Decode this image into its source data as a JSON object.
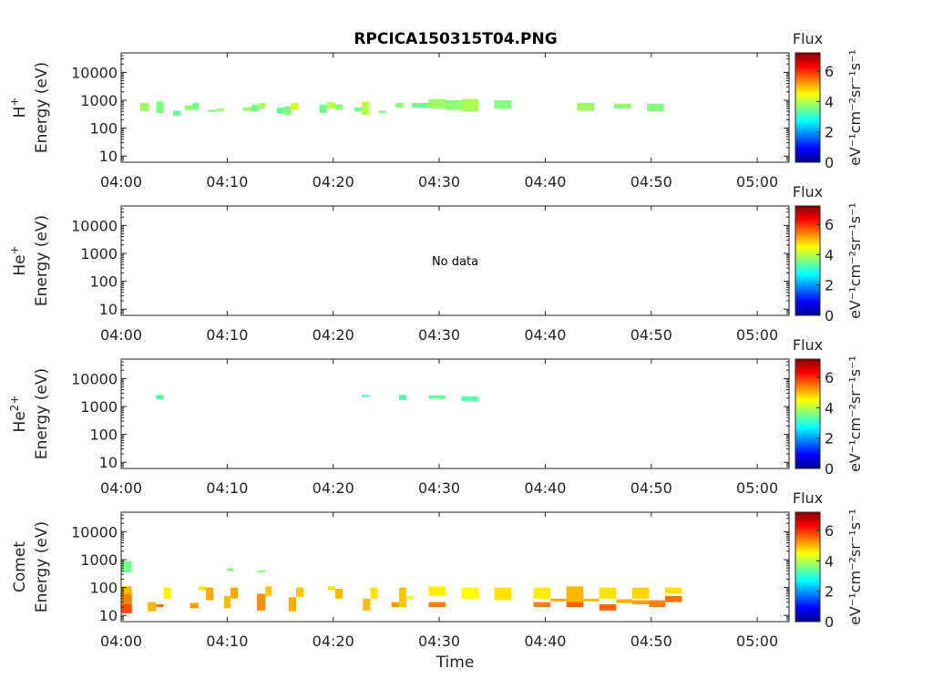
{
  "title": "RPCICA150315T04.PNG",
  "colors": {
    "axis": "#262626",
    "background": "#ffffff",
    "colormap": "jet"
  },
  "chart_data": [
    {
      "type": "heatmap",
      "species": "H",
      "species_sup": "+",
      "ylabel": "Energy (eV)",
      "x_range": [
        "04:00",
        "05:03"
      ],
      "y_scale": "log",
      "ylim": [
        6,
        50000
      ],
      "x_ticks": [
        "04:00",
        "04:10",
        "04:20",
        "04:30",
        "04:40",
        "04:50",
        "05:00"
      ],
      "y_ticks": [
        "10",
        "100",
        "1000",
        "10000"
      ],
      "no_data": "",
      "colorbar": {
        "title": "Flux",
        "label": "eV⁻¹cm⁻²sr⁻¹s⁻¹",
        "range": [
          0,
          7.2
        ],
        "ticks": [
          "0",
          "2",
          "4",
          "6"
        ]
      },
      "cells": [
        {
          "t0": 1.8,
          "t1": 2.6,
          "e0": 400,
          "e1": 800,
          "v": 3.8
        },
        {
          "t0": 3.3,
          "t1": 4.0,
          "e0": 350,
          "e1": 900,
          "v": 3.6
        },
        {
          "t0": 4.9,
          "t1": 5.6,
          "e0": 280,
          "e1": 420,
          "v": 3.4
        },
        {
          "t0": 6.0,
          "t1": 6.7,
          "e0": 450,
          "e1": 650,
          "v": 3.7
        },
        {
          "t0": 6.7,
          "t1": 7.3,
          "e0": 450,
          "e1": 800,
          "v": 3.5
        },
        {
          "t0": 8.2,
          "t1": 9.0,
          "e0": 380,
          "e1": 450,
          "v": 3.6
        },
        {
          "t0": 9.0,
          "t1": 9.7,
          "e0": 400,
          "e1": 500,
          "v": 3.8
        },
        {
          "t0": 11.5,
          "t1": 12.3,
          "e0": 420,
          "e1": 550,
          "v": 3.7
        },
        {
          "t0": 12.3,
          "t1": 13.0,
          "e0": 400,
          "e1": 700,
          "v": 3.5
        },
        {
          "t0": 13.0,
          "t1": 13.6,
          "e0": 500,
          "e1": 800,
          "v": 3.9
        },
        {
          "t0": 14.7,
          "t1": 15.4,
          "e0": 330,
          "e1": 550,
          "v": 3.4
        },
        {
          "t0": 15.4,
          "t1": 16.0,
          "e0": 300,
          "e1": 600,
          "v": 3.6
        },
        {
          "t0": 16.0,
          "t1": 16.7,
          "e0": 450,
          "e1": 800,
          "v": 4.2
        },
        {
          "t0": 18.7,
          "t1": 19.4,
          "e0": 350,
          "e1": 700,
          "v": 3.5
        },
        {
          "t0": 19.4,
          "t1": 20.2,
          "e0": 500,
          "e1": 850,
          "v": 4.0
        },
        {
          "t0": 20.2,
          "t1": 20.9,
          "e0": 450,
          "e1": 700,
          "v": 3.7
        },
        {
          "t0": 22.0,
          "t1": 22.7,
          "e0": 400,
          "e1": 550,
          "v": 3.5
        },
        {
          "t0": 22.7,
          "t1": 23.4,
          "e0": 300,
          "e1": 900,
          "v": 4.0
        },
        {
          "t0": 24.3,
          "t1": 25.0,
          "e0": 350,
          "e1": 420,
          "v": 3.6
        },
        {
          "t0": 25.9,
          "t1": 26.6,
          "e0": 550,
          "e1": 800,
          "v": 3.7
        },
        {
          "t0": 27.4,
          "t1": 29.0,
          "e0": 550,
          "e1": 800,
          "v": 3.5
        },
        {
          "t0": 29.0,
          "t1": 30.6,
          "e0": 500,
          "e1": 1100,
          "v": 3.8
        },
        {
          "t0": 30.6,
          "t1": 32.1,
          "e0": 450,
          "e1": 1000,
          "v": 3.7
        },
        {
          "t0": 32.1,
          "t1": 33.7,
          "e0": 400,
          "e1": 1100,
          "v": 3.9
        },
        {
          "t0": 35.2,
          "t1": 36.8,
          "e0": 500,
          "e1": 1000,
          "v": 3.6
        },
        {
          "t0": 43.0,
          "t1": 44.6,
          "e0": 420,
          "e1": 800,
          "v": 3.8
        },
        {
          "t0": 46.5,
          "t1": 48.1,
          "e0": 500,
          "e1": 750,
          "v": 3.7
        },
        {
          "t0": 49.6,
          "t1": 51.2,
          "e0": 400,
          "e1": 750,
          "v": 3.6
        }
      ]
    },
    {
      "type": "heatmap",
      "species": "He",
      "species_sup": "+",
      "ylabel": "Energy (eV)",
      "x_range": [
        "04:00",
        "05:03"
      ],
      "y_scale": "log",
      "ylim": [
        6,
        50000
      ],
      "x_ticks": [
        "04:00",
        "04:10",
        "04:20",
        "04:30",
        "04:40",
        "04:50",
        "05:00"
      ],
      "y_ticks": [
        "10",
        "100",
        "1000",
        "10000"
      ],
      "no_data": "No data",
      "colorbar": {
        "title": "Flux",
        "label": "eV⁻¹cm⁻²sr⁻¹s⁻¹",
        "range": [
          0,
          7.2
        ],
        "ticks": [
          "0",
          "2",
          "4",
          "6"
        ]
      },
      "cells": []
    },
    {
      "type": "heatmap",
      "species": "He",
      "species_sup": "2+",
      "ylabel": "Energy (eV)",
      "x_range": [
        "04:00",
        "05:03"
      ],
      "y_scale": "log",
      "ylim": [
        6,
        50000
      ],
      "x_ticks": [
        "04:00",
        "04:10",
        "04:20",
        "04:30",
        "04:40",
        "04:50",
        "05:00"
      ],
      "y_ticks": [
        "10",
        "100",
        "1000",
        "10000"
      ],
      "no_data": "",
      "colorbar": {
        "title": "Flux",
        "label": "eV⁻¹cm⁻²sr⁻¹s⁻¹",
        "range": [
          0,
          7.2
        ],
        "ticks": [
          "0",
          "2",
          "4",
          "6"
        ]
      },
      "cells": [
        {
          "t0": 3.3,
          "t1": 4.0,
          "e0": 1800,
          "e1": 2600,
          "v": 3.3
        },
        {
          "t0": 22.7,
          "t1": 23.4,
          "e0": 2200,
          "e1": 2600,
          "v": 3.2
        },
        {
          "t0": 26.2,
          "t1": 26.9,
          "e0": 1700,
          "e1": 2600,
          "v": 3.3
        },
        {
          "t0": 29.0,
          "t1": 30.6,
          "e0": 1900,
          "e1": 2500,
          "v": 3.4
        },
        {
          "t0": 32.1,
          "t1": 33.7,
          "e0": 1600,
          "e1": 2300,
          "v": 3.3
        }
      ]
    },
    {
      "type": "heatmap",
      "species": "Comet",
      "species_sup": "",
      "ylabel": "Energy (eV)",
      "x_range": [
        "04:00",
        "05:03"
      ],
      "y_scale": "log",
      "ylim": [
        6,
        50000
      ],
      "x_ticks": [
        "04:00",
        "04:10",
        "04:20",
        "04:30",
        "04:40",
        "04:50",
        "05:00"
      ],
      "y_ticks": [
        "10",
        "100",
        "1000",
        "10000"
      ],
      "x_label": "Time",
      "no_data": "",
      "colorbar": {
        "title": "Flux",
        "label": "eV⁻¹cm⁻²sr⁻¹s⁻¹",
        "range": [
          0,
          7.2
        ],
        "ticks": [
          "0",
          "2",
          "4",
          "6"
        ]
      },
      "cells": [
        {
          "t0": 0.0,
          "t1": 1.0,
          "e0": 350,
          "e1": 900,
          "v": 3.5
        },
        {
          "t0": 0.0,
          "t1": 1.0,
          "e0": 60,
          "e1": 110,
          "v": 5.0
        },
        {
          "t0": 0.0,
          "t1": 1.0,
          "e0": 15,
          "e1": 60,
          "v": 5.4
        },
        {
          "t0": 0.0,
          "t1": 1.0,
          "e0": 12,
          "e1": 25,
          "v": 5.8
        },
        {
          "t0": 2.5,
          "t1": 3.3,
          "e0": 14,
          "e1": 30,
          "v": 5.0
        },
        {
          "t0": 3.3,
          "t1": 4.0,
          "e0": 20,
          "e1": 25,
          "v": 5.5
        },
        {
          "t0": 4.0,
          "t1": 4.7,
          "e0": 40,
          "e1": 100,
          "v": 4.6
        },
        {
          "t0": 6.5,
          "t1": 7.3,
          "e0": 18,
          "e1": 28,
          "v": 5.2
        },
        {
          "t0": 7.3,
          "t1": 8.0,
          "e0": 80,
          "e1": 110,
          "v": 4.7
        },
        {
          "t0": 8.0,
          "t1": 8.7,
          "e0": 35,
          "e1": 100,
          "v": 5.1
        },
        {
          "t0": 9.7,
          "t1": 10.3,
          "e0": 18,
          "e1": 50,
          "v": 5.0
        },
        {
          "t0": 10.0,
          "t1": 10.6,
          "e0": 380,
          "e1": 500,
          "v": 3.6
        },
        {
          "t0": 10.3,
          "t1": 11.0,
          "e0": 40,
          "e1": 100,
          "v": 5.1
        },
        {
          "t0": 12.8,
          "t1": 13.6,
          "e0": 15,
          "e1": 60,
          "v": 5.3
        },
        {
          "t0": 13.6,
          "t1": 14.2,
          "e0": 50,
          "e1": 110,
          "v": 4.9
        },
        {
          "t0": 12.8,
          "t1": 13.6,
          "e0": 350,
          "e1": 400,
          "v": 3.6
        },
        {
          "t0": 15.8,
          "t1": 16.5,
          "e0": 14,
          "e1": 45,
          "v": 5.1
        },
        {
          "t0": 16.5,
          "t1": 17.2,
          "e0": 45,
          "e1": 100,
          "v": 4.9
        },
        {
          "t0": 19.5,
          "t1": 20.2,
          "e0": 80,
          "e1": 110,
          "v": 4.7
        },
        {
          "t0": 20.2,
          "t1": 20.9,
          "e0": 40,
          "e1": 90,
          "v": 5.0
        },
        {
          "t0": 22.8,
          "t1": 23.5,
          "e0": 15,
          "e1": 40,
          "v": 5.0
        },
        {
          "t0": 23.5,
          "t1": 24.2,
          "e0": 40,
          "e1": 100,
          "v": 4.7
        },
        {
          "t0": 25.5,
          "t1": 26.2,
          "e0": 20,
          "e1": 30,
          "v": 5.2
        },
        {
          "t0": 26.2,
          "t1": 26.9,
          "e0": 20,
          "e1": 100,
          "v": 4.9
        },
        {
          "t0": 26.9,
          "t1": 27.6,
          "e0": 40,
          "e1": 50,
          "v": 4.3
        },
        {
          "t0": 29.0,
          "t1": 30.6,
          "e0": 50,
          "e1": 110,
          "v": 4.6
        },
        {
          "t0": 29.0,
          "t1": 30.6,
          "e0": 20,
          "e1": 30,
          "v": 5.4
        },
        {
          "t0": 32.1,
          "t1": 33.7,
          "e0": 40,
          "e1": 100,
          "v": 4.5
        },
        {
          "t0": 35.2,
          "t1": 36.8,
          "e0": 35,
          "e1": 100,
          "v": 4.7
        },
        {
          "t0": 38.9,
          "t1": 40.5,
          "e0": 40,
          "e1": 100,
          "v": 4.6
        },
        {
          "t0": 38.9,
          "t1": 40.5,
          "e0": 20,
          "e1": 30,
          "v": 5.4
        },
        {
          "t0": 40.5,
          "t1": 42.0,
          "e0": 32,
          "e1": 40,
          "v": 5.1
        },
        {
          "t0": 42.0,
          "t1": 43.6,
          "e0": 25,
          "e1": 110,
          "v": 5.0
        },
        {
          "t0": 42.0,
          "t1": 43.6,
          "e0": 20,
          "e1": 30,
          "v": 5.6
        },
        {
          "t0": 43.6,
          "t1": 45.1,
          "e0": 32,
          "e1": 40,
          "v": 5.0
        },
        {
          "t0": 45.1,
          "t1": 46.7,
          "e0": 40,
          "e1": 100,
          "v": 4.7
        },
        {
          "t0": 45.1,
          "t1": 46.7,
          "e0": 15,
          "e1": 25,
          "v": 5.6
        },
        {
          "t0": 46.7,
          "t1": 48.2,
          "e0": 28,
          "e1": 38,
          "v": 5.1
        },
        {
          "t0": 48.2,
          "t1": 49.8,
          "e0": 40,
          "e1": 100,
          "v": 4.8
        },
        {
          "t0": 48.2,
          "t1": 49.8,
          "e0": 25,
          "e1": 35,
          "v": 5.2
        },
        {
          "t0": 49.8,
          "t1": 51.3,
          "e0": 20,
          "e1": 35,
          "v": 5.4
        },
        {
          "t0": 51.3,
          "t1": 52.9,
          "e0": 60,
          "e1": 100,
          "v": 4.7
        },
        {
          "t0": 51.3,
          "t1": 52.9,
          "e0": 30,
          "e1": 50,
          "v": 5.5
        }
      ]
    }
  ]
}
